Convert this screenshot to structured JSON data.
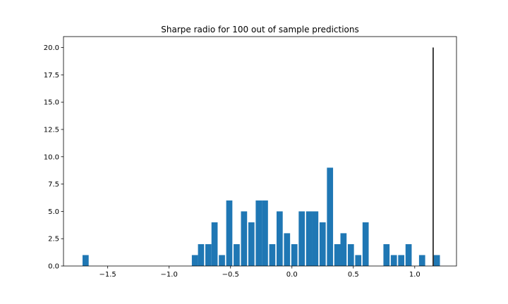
{
  "chart_data": {
    "type": "bar",
    "title": "Sharpe radio for 100 out of sample predictions",
    "xlabel": "",
    "ylabel": "",
    "xlim": [
      -1.86,
      1.34
    ],
    "ylim": [
      0,
      21
    ],
    "x_ticks": [
      -1.5,
      -1.0,
      -0.5,
      0.0,
      0.5,
      1.0
    ],
    "x_tick_labels": [
      "−1.5",
      "−1.0",
      "−0.5",
      "0.0",
      "0.5",
      "1.0"
    ],
    "y_ticks": [
      0,
      2.5,
      5,
      7.5,
      10,
      12.5,
      15,
      17.5,
      20
    ],
    "y_tick_labels": [
      "0.0",
      "2.5",
      "5.0",
      "7.5",
      "10.0",
      "12.5",
      "15.0",
      "17.5",
      "20.0"
    ],
    "bar_width": 0.05,
    "bar_color": "#1f77b4",
    "bins": [
      {
        "x": -1.68,
        "count": 1
      },
      {
        "x": -0.79,
        "count": 1
      },
      {
        "x": -0.74,
        "count": 2
      },
      {
        "x": -0.68,
        "count": 2
      },
      {
        "x": -0.63,
        "count": 4
      },
      {
        "x": -0.57,
        "count": 1
      },
      {
        "x": -0.51,
        "count": 6
      },
      {
        "x": -0.45,
        "count": 2
      },
      {
        "x": -0.39,
        "count": 5
      },
      {
        "x": -0.33,
        "count": 4
      },
      {
        "x": -0.27,
        "count": 6
      },
      {
        "x": -0.22,
        "count": 6
      },
      {
        "x": -0.16,
        "count": 2
      },
      {
        "x": -0.1,
        "count": 5
      },
      {
        "x": -0.04,
        "count": 3
      },
      {
        "x": 0.02,
        "count": 2
      },
      {
        "x": 0.08,
        "count": 5
      },
      {
        "x": 0.14,
        "count": 5
      },
      {
        "x": 0.19,
        "count": 5
      },
      {
        "x": 0.25,
        "count": 4
      },
      {
        "x": 0.31,
        "count": 9
      },
      {
        "x": 0.37,
        "count": 2
      },
      {
        "x": 0.42,
        "count": 3
      },
      {
        "x": 0.48,
        "count": 2
      },
      {
        "x": 0.54,
        "count": 1
      },
      {
        "x": 0.6,
        "count": 4
      },
      {
        "x": 0.77,
        "count": 2
      },
      {
        "x": 0.83,
        "count": 1
      },
      {
        "x": 0.89,
        "count": 1
      },
      {
        "x": 0.95,
        "count": 2
      },
      {
        "x": 1.06,
        "count": 1
      },
      {
        "x": 1.18,
        "count": 1
      }
    ],
    "vline": {
      "x": 1.15,
      "ymin": 0,
      "ymax": 20,
      "color": "#000000"
    },
    "grid": false,
    "legend": false
  }
}
